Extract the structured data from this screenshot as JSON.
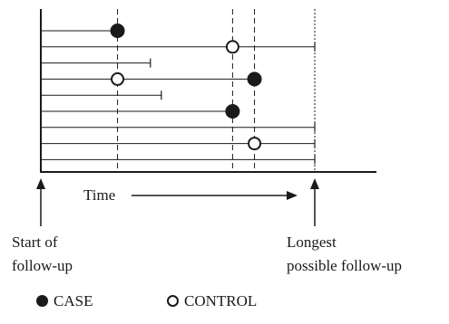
{
  "labels": {
    "time": "Time",
    "start_line1": "Start of",
    "start_line2": "follow-up",
    "longest_line1": "Longest",
    "longest_line2": "possible follow-up"
  },
  "legend": {
    "case": "CASE",
    "control": "CONTROL"
  },
  "colors": {
    "ink": "#1a1a1a",
    "background": "#ffffff"
  },
  "follow_up_lines": [
    {
      "subject": 1,
      "end_time": 0.28,
      "end_type": "event",
      "marker": "case"
    },
    {
      "subject": 2,
      "end_time": 1.0,
      "end_type": "censored",
      "marker": "control",
      "marker_time": 0.7
    },
    {
      "subject": 3,
      "end_time": 0.4,
      "end_type": "censored"
    },
    {
      "subject": 4,
      "end_time": 0.78,
      "end_type": "event",
      "marker": "case",
      "control_marker_time": 0.28
    },
    {
      "subject": 5,
      "end_time": 0.44,
      "end_type": "censored"
    },
    {
      "subject": 6,
      "end_time": 0.7,
      "end_type": "event",
      "marker": "case"
    },
    {
      "subject": 7,
      "end_time": 1.0,
      "end_type": "censored"
    },
    {
      "subject": 8,
      "end_time": 1.0,
      "end_type": "censored",
      "marker": "control",
      "marker_time": 0.78
    },
    {
      "subject": 9,
      "end_time": 1.0,
      "end_type": "censored"
    }
  ],
  "event_times": [
    0.28,
    0.7,
    0.78
  ]
}
